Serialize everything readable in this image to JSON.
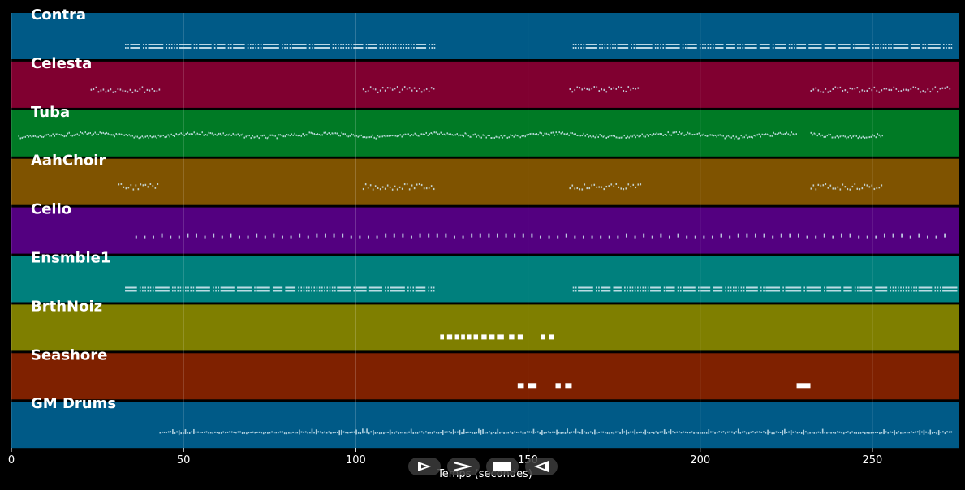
{
  "axis": {
    "title": "Temps (secondes)",
    "min": 0,
    "max": 275,
    "ticks": [
      0,
      50,
      100,
      150,
      200,
      250
    ],
    "tick_labels": [
      "0",
      "50",
      "100",
      "150",
      "200",
      "250"
    ]
  },
  "tracks": [
    {
      "name": "Contra",
      "color": "#005a87",
      "pattern": "dense",
      "segments": [
        [
          33,
          123
        ],
        [
          163,
          273
        ]
      ]
    },
    {
      "name": "Celesta",
      "color": "#800030",
      "pattern": "sparkle",
      "segments": [
        [
          23,
          43
        ],
        [
          102,
          123
        ],
        [
          162,
          182
        ],
        [
          232,
          273
        ]
      ]
    },
    {
      "name": "Tuba",
      "color": "#007a25",
      "pattern": "wave",
      "segments": [
        [
          2,
          228
        ],
        [
          232,
          253
        ]
      ]
    },
    {
      "name": "AahChoir",
      "color": "#7f5300",
      "pattern": "sparkle",
      "segments": [
        [
          31,
          43
        ],
        [
          102,
          123
        ],
        [
          162,
          183
        ],
        [
          232,
          253
        ]
      ]
    },
    {
      "name": "Cello",
      "color": "#530080",
      "pattern": "sparse",
      "segments": [
        [
          36,
          273
        ]
      ]
    },
    {
      "name": "Ensmble1",
      "color": "#00807d",
      "pattern": "dense",
      "segments": [
        [
          33,
          123
        ],
        [
          163,
          273
        ]
      ]
    },
    {
      "name": "BrthNoiz",
      "color": "#7f7f00",
      "pattern": "blocks",
      "notes": [
        [
          124.5,
          125.6
        ],
        [
          126.5,
          128
        ],
        [
          128.8,
          130
        ],
        [
          130.6,
          131.7
        ],
        [
          132.2,
          133.5
        ],
        [
          134.2,
          135.5
        ],
        [
          136.5,
          138
        ],
        [
          138.8,
          140.3
        ],
        [
          141,
          143
        ],
        [
          144.5,
          146
        ],
        [
          147,
          148.5
        ],
        [
          153.7,
          155
        ],
        [
          156,
          157.6
        ]
      ]
    },
    {
      "name": "Seashore",
      "color": "#7f2100",
      "pattern": "blocks",
      "notes": [
        [
          147,
          148.8
        ],
        [
          150,
          152.5
        ],
        [
          158,
          159.5
        ],
        [
          160.8,
          162.7
        ],
        [
          228,
          232
        ]
      ]
    },
    {
      "name": "GM Drums",
      "color": "#005a87",
      "pattern": "drums",
      "segments": [
        [
          43,
          273
        ]
      ]
    }
  ],
  "controls": [
    {
      "name": "play",
      "icon": "play-outline-icon"
    },
    {
      "name": "forward",
      "icon": "chevron-right-icon"
    },
    {
      "name": "stop",
      "icon": "stop-square-icon"
    },
    {
      "name": "rewind",
      "icon": "rewind-triangle-icon"
    }
  ],
  "colors": {
    "background": "#000000",
    "grid": "rgba(255,255,255,0.22)",
    "label": "#ffffff",
    "note": "#cfe6f0"
  }
}
